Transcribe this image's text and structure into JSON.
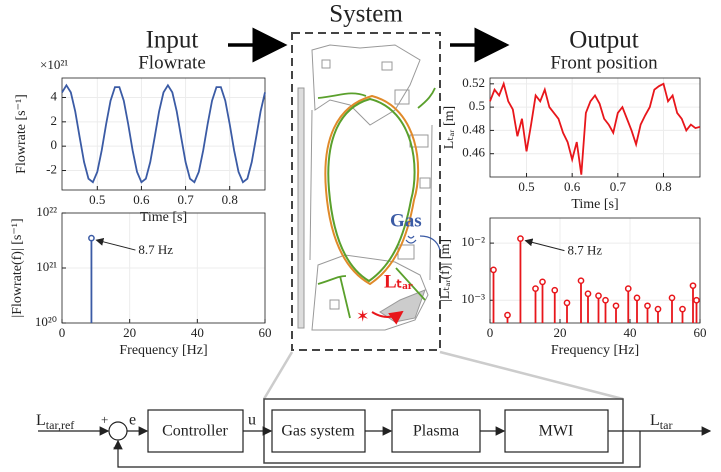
{
  "header": {
    "input": "Input",
    "input_sub": "Flowrate",
    "system": "System",
    "output": "Output",
    "output_sub": "Front position"
  },
  "system": {
    "gas": "Gas",
    "target": "Lₜₐᵣ"
  },
  "chart_data": [
    {
      "type": "line",
      "color": "#3b5ba5",
      "grid": true,
      "ylabel": "Flowrate [s⁻¹]",
      "xlabel": "Time [s]",
      "exponent_label": "×10²¹",
      "x": [
        0.42,
        0.43,
        0.44,
        0.45,
        0.46,
        0.47,
        0.48,
        0.49,
        0.5,
        0.51,
        0.52,
        0.53,
        0.54,
        0.55,
        0.56,
        0.57,
        0.58,
        0.59,
        0.6,
        0.61,
        0.62,
        0.63,
        0.64,
        0.65,
        0.66,
        0.67,
        0.68,
        0.69,
        0.7,
        0.71,
        0.72,
        0.73,
        0.74,
        0.75,
        0.76,
        0.77,
        0.78,
        0.79,
        0.8,
        0.81,
        0.82,
        0.83,
        0.84,
        0.85,
        0.86,
        0.87,
        0.88
      ],
      "values": [
        4.41,
        5,
        4.42,
        2.85,
        0.74,
        -1.3,
        -2.67,
        -2.96,
        -2.11,
        -0.34,
        1.81,
        3.73,
        4.85,
        4.85,
        3.73,
        1.81,
        -0.34,
        -2.11,
        -2.96,
        -2.67,
        -1.3,
        0.74,
        2.85,
        4.42,
        5,
        4.42,
        2.85,
        0.74,
        -1.3,
        -2.67,
        -2.96,
        -2.11,
        -0.34,
        1.81,
        3.73,
        4.85,
        4.85,
        3.73,
        1.81,
        -0.34,
        -2.11,
        -2.96,
        -2.67,
        -1.3,
        0.74,
        2.85,
        4.42
      ],
      "xlim": [
        0.42,
        0.88
      ],
      "ylim": [
        -3.6,
        5.6
      ],
      "xticks": [
        0.5,
        0.6,
        0.7,
        0.8
      ],
      "yticks": [
        -2,
        0,
        2,
        4
      ]
    },
    {
      "type": "stem",
      "color": "#3b5ba5",
      "grid": true,
      "yscale": "log",
      "ylabel": "|Flowrate(f)| [s⁻¹]",
      "xlabel": "Frequency [Hz]",
      "annotation": "8.7 Hz",
      "x": [
        8.7
      ],
      "values": [
        3.5e+21
      ],
      "xlim": [
        0,
        60
      ],
      "ylim": [
        1e+20,
        1e+22
      ],
      "xticks": [
        0,
        20,
        40,
        60
      ],
      "yticks": [
        {
          "value": 1e+20,
          "label": "10²⁰"
        },
        {
          "value": 1e+21,
          "label": "10²¹"
        },
        {
          "value": 1e+22,
          "label": "10²²"
        }
      ]
    },
    {
      "type": "line",
      "color": "#e8161b",
      "grid": true,
      "ylabel": "Lₜₐᵣ [m]",
      "xlabel": "Time [s]",
      "x": [
        0.42,
        0.43,
        0.44,
        0.45,
        0.46,
        0.47,
        0.48,
        0.49,
        0.5,
        0.51,
        0.52,
        0.53,
        0.54,
        0.55,
        0.56,
        0.57,
        0.58,
        0.59,
        0.6,
        0.61,
        0.62,
        0.63,
        0.64,
        0.65,
        0.66,
        0.67,
        0.68,
        0.69,
        0.7,
        0.71,
        0.72,
        0.73,
        0.74,
        0.75,
        0.76,
        0.77,
        0.78,
        0.79,
        0.8,
        0.81,
        0.82,
        0.83,
        0.84,
        0.85,
        0.86,
        0.87,
        0.88
      ],
      "values": [
        0.505,
        0.515,
        0.51,
        0.52,
        0.505,
        0.498,
        0.475,
        0.49,
        0.462,
        0.485,
        0.51,
        0.505,
        0.515,
        0.5,
        0.495,
        0.49,
        0.478,
        0.47,
        0.455,
        0.47,
        0.442,
        0.495,
        0.505,
        0.51,
        0.503,
        0.49,
        0.485,
        0.478,
        0.495,
        0.5,
        0.49,
        0.48,
        0.468,
        0.485,
        0.493,
        0.5,
        0.515,
        0.518,
        0.52,
        0.505,
        0.51,
        0.495,
        0.49,
        0.48,
        0.485,
        0.482,
        0.483
      ],
      "xlim": [
        0.42,
        0.88
      ],
      "ylim": [
        0.44,
        0.525
      ],
      "xticks": [
        0.5,
        0.6,
        0.7,
        0.8
      ],
      "yticks": [
        0.46,
        0.48,
        0.5,
        0.52
      ]
    },
    {
      "type": "stem",
      "color": "#e8161b",
      "grid": true,
      "yscale": "log",
      "ylabel": "|Lₜₐᵣ(f)| [m]",
      "xlabel": "Frequency [Hz]",
      "annotation": "8.7 Hz",
      "x": [
        1,
        5,
        8.7,
        13,
        15,
        18.5,
        22,
        26,
        28,
        31,
        33,
        36,
        39.5,
        42,
        45,
        48,
        52,
        55,
        58,
        59
      ],
      "values": [
        0.0034,
        0.00055,
        0.012,
        0.0016,
        0.0021,
        0.0015,
        0.0009,
        0.0022,
        0.0013,
        0.0012,
        0.001,
        0.0008,
        0.0016,
        0.0011,
        0.0008,
        0.0007,
        0.0011,
        0.0007,
        0.0018,
        0.001
      ],
      "xlim": [
        0,
        60
      ],
      "ylim": [
        0.0004,
        0.0275
      ],
      "xticks": [
        0,
        20,
        40,
        60
      ],
      "yticks": [
        {
          "value": 0.001,
          "label": "10⁻³"
        },
        {
          "value": 0.01,
          "label": "10⁻²"
        }
      ]
    }
  ],
  "block_diagram": {
    "reference": {
      "symbol": "L",
      "subscript": "tar,ref"
    },
    "plus": "+",
    "minus": "−",
    "error": "e",
    "input": "u",
    "blocks": [
      "Controller",
      "Gas system",
      "Plasma",
      "MWI"
    ],
    "output": {
      "symbol": "L",
      "subscript": "tar"
    }
  }
}
